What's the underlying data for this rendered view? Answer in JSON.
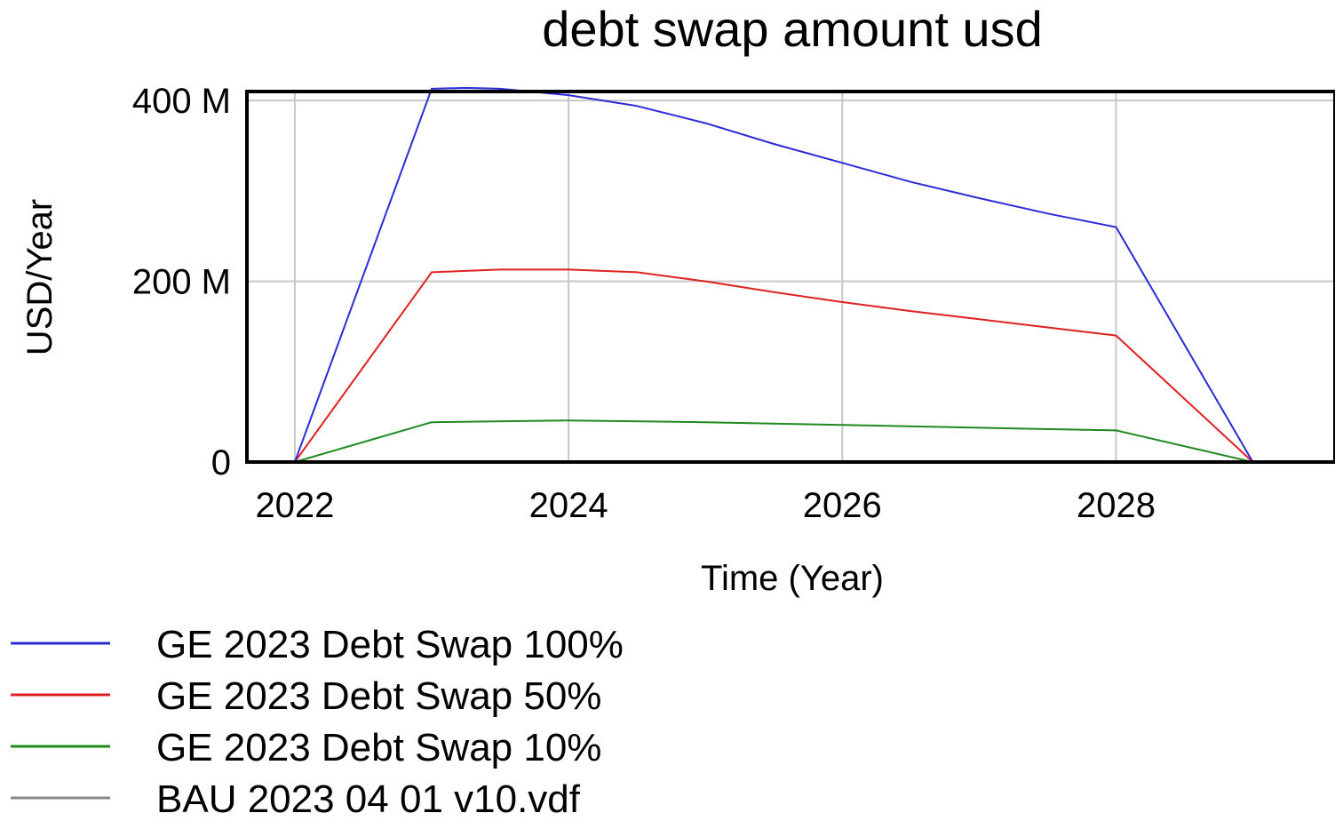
{
  "chart_data": {
    "type": "line",
    "title": "debt swap amount usd",
    "xlabel": "Time (Year)",
    "ylabel": "USD/Year",
    "xlim": [
      2021.65,
      2029.6
    ],
    "ylim": [
      0,
      410000000
    ],
    "x_ticks": [
      2022,
      2024,
      2026,
      2028
    ],
    "x_tick_labels": [
      "2022",
      "2024",
      "2026",
      "2028"
    ],
    "y_ticks": [
      0,
      200000000,
      400000000
    ],
    "y_tick_labels": [
      "0",
      "200 M",
      "400 M"
    ],
    "grid": true,
    "legend_position": "bottom-left",
    "series": [
      {
        "name": "GE 2023 Debt Swap 100%",
        "color": "#2b2bd8",
        "x": [
          2021.65,
          2022,
          2023,
          2023.25,
          2023.5,
          2024,
          2024.5,
          2025,
          2025.5,
          2026,
          2026.5,
          2027,
          2027.5,
          2028,
          2029,
          2029.6
        ],
        "y": [
          0,
          0,
          413000000,
          414000000,
          413000000,
          406000000,
          394000000,
          375000000,
          352000000,
          331000000,
          310000000,
          292000000,
          275000000,
          260000000,
          0,
          0
        ]
      },
      {
        "name": "GE 2023 Debt Swap 50%",
        "color": "#e02020",
        "x": [
          2021.65,
          2022,
          2023,
          2023.5,
          2024,
          2024.5,
          2025,
          2025.5,
          2026,
          2026.5,
          2027,
          2027.5,
          2028,
          2029,
          2029.6
        ],
        "y": [
          0,
          0,
          210000000,
          213000000,
          213000000,
          210000000,
          200000000,
          188000000,
          177000000,
          167000000,
          158000000,
          149000000,
          140000000,
          0,
          0
        ]
      },
      {
        "name": "GE 2023 Debt Swap 10%",
        "color": "#1e8a1e",
        "x": [
          2021.65,
          2022,
          2023,
          2024,
          2025,
          2026,
          2027,
          2028,
          2029,
          2029.6
        ],
        "y": [
          0,
          0,
          44000000,
          46000000,
          44000000,
          41000000,
          38000000,
          35000000,
          0,
          0
        ]
      },
      {
        "name": "BAU 2023 04 01 v10.vdf",
        "color": "#888888",
        "x": [
          2021.65,
          2029.6
        ],
        "y": [
          0,
          0
        ]
      }
    ]
  }
}
